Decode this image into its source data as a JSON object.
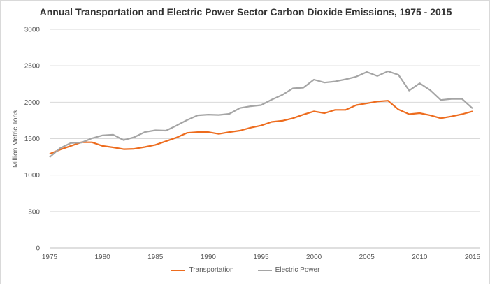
{
  "chart_data": {
    "type": "line",
    "title": "Annual Transportation and Electric Power Sector Carbon Dioxide Emissions, 1975 - 2015",
    "xlabel": "",
    "ylabel": "Million Metric Tons",
    "xlim": [
      1975,
      2015
    ],
    "ylim": [
      0,
      3000
    ],
    "x_ticks": [
      1975,
      1980,
      1985,
      1990,
      1995,
      2000,
      2005,
      2010,
      2015
    ],
    "y_ticks": [
      0,
      500,
      1000,
      1500,
      2000,
      2500,
      3000
    ],
    "grid": "horizontal",
    "legend_position": "bottom",
    "x": [
      1975,
      1976,
      1977,
      1978,
      1979,
      1980,
      1981,
      1982,
      1983,
      1984,
      1985,
      1986,
      1987,
      1988,
      1989,
      1990,
      1991,
      1992,
      1993,
      1994,
      1995,
      1996,
      1997,
      1998,
      1999,
      2000,
      2001,
      2002,
      2003,
      2004,
      2005,
      2006,
      2007,
      2008,
      2009,
      2010,
      2011,
      2012,
      2013,
      2014,
      2015
    ],
    "series": [
      {
        "name": "Transportation",
        "color": "#ED6C1E",
        "values": [
          1290,
          1350,
          1400,
          1450,
          1450,
          1400,
          1380,
          1355,
          1360,
          1385,
          1415,
          1465,
          1515,
          1580,
          1590,
          1590,
          1565,
          1590,
          1610,
          1650,
          1680,
          1730,
          1745,
          1780,
          1830,
          1875,
          1850,
          1895,
          1895,
          1960,
          1985,
          2010,
          2020,
          1900,
          1835,
          1850,
          1820,
          1780,
          1805,
          1835,
          1875
        ]
      },
      {
        "name": "Electric Power",
        "color": "#A5A5A5",
        "values": [
          1245,
          1370,
          1440,
          1445,
          1505,
          1545,
          1555,
          1480,
          1520,
          1590,
          1615,
          1610,
          1680,
          1755,
          1820,
          1830,
          1825,
          1840,
          1920,
          1945,
          1960,
          2035,
          2100,
          2190,
          2200,
          2310,
          2270,
          2285,
          2315,
          2350,
          2415,
          2360,
          2425,
          2375,
          2160,
          2260,
          2165,
          2030,
          2045,
          2045,
          1915
        ]
      }
    ]
  }
}
